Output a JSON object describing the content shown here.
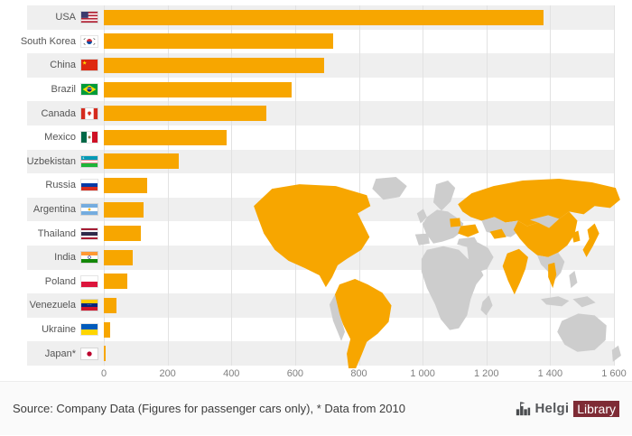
{
  "chart_data": {
    "type": "bar",
    "orientation": "horizontal",
    "title": "",
    "categories": [
      "USA",
      "South Korea",
      "China",
      "Brazil",
      "Canada",
      "Mexico",
      "Uzbekistan",
      "Russia",
      "Argentina",
      "Thailand",
      "India",
      "Poland",
      "Venezuela",
      "Ukraine",
      "Japan*"
    ],
    "values": [
      1380,
      720,
      690,
      590,
      510,
      385,
      235,
      135,
      125,
      115,
      90,
      75,
      40,
      20,
      5
    ],
    "flags": [
      "us",
      "kr",
      "cn",
      "br",
      "ca",
      "mx",
      "uz",
      "ru",
      "ar",
      "th",
      "in",
      "pl",
      "ve",
      "ua",
      "jp"
    ],
    "xlim": [
      0,
      1600
    ],
    "x_ticks": [
      0,
      200,
      400,
      600,
      800,
      1000,
      1200,
      1400,
      1600
    ],
    "x_tick_labels": [
      "0",
      "200",
      "400",
      "600",
      "800",
      "1 000",
      "1 200",
      "1 400",
      "1 600"
    ],
    "bar_color": "#F7A600",
    "grid": true,
    "legend": false
  },
  "map": {
    "highlight_color": "#F7A600",
    "base_color": "#CDCDCD",
    "highlighted": [
      "USA",
      "South Korea",
      "China",
      "Brazil",
      "Canada",
      "Mexico",
      "Uzbekistan",
      "Russia",
      "Argentina",
      "Thailand",
      "India",
      "Poland",
      "Venezuela",
      "Ukraine",
      "Japan"
    ]
  },
  "style": {
    "stripe_color": "#EFEFEF",
    "grid_color": "#E2E2E2",
    "label_color": "#555555",
    "axis_color": "#808080"
  },
  "footer": {
    "source_text": "Source: Company Data (Figures for passenger cars only), * Data from 2010",
    "logo": {
      "primary": "Helgi",
      "secondary": "Library"
    }
  }
}
